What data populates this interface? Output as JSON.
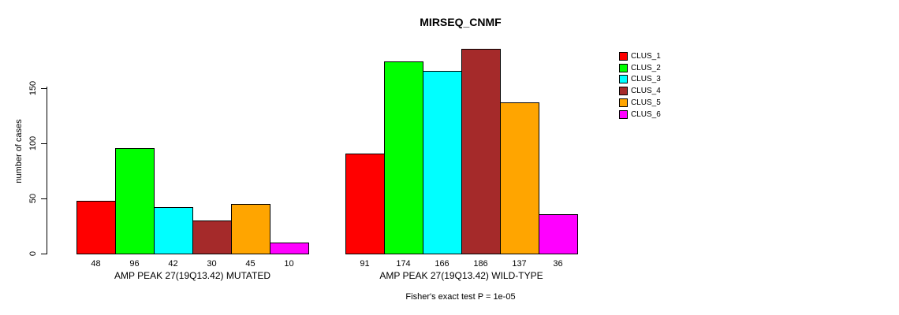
{
  "chart_data": {
    "type": "bar",
    "title": "MIRSEQ_CNMF",
    "ylabel": "number of cases",
    "xlabel": "",
    "yticks": [
      0,
      50,
      100,
      150
    ],
    "ylim": [
      0,
      190
    ],
    "grid": false,
    "legend_position": "right",
    "clusters": [
      {
        "name": "CLUS_1",
        "color": "#ff0000"
      },
      {
        "name": "CLUS_2",
        "color": "#00ff00"
      },
      {
        "name": "CLUS_3",
        "color": "#00ffff"
      },
      {
        "name": "CLUS_4",
        "color": "#a52a2a"
      },
      {
        "name": "CLUS_5",
        "color": "#ffa500"
      },
      {
        "name": "CLUS_6",
        "color": "#ff00ff"
      }
    ],
    "groups": [
      {
        "label": "AMP PEAK 27(19Q13.42) MUTATED",
        "values": [
          48,
          96,
          42,
          30,
          45,
          10
        ]
      },
      {
        "label": "AMP PEAK 27(19Q13.42) WILD-TYPE",
        "values": [
          91,
          174,
          166,
          186,
          137,
          36
        ]
      }
    ],
    "annotation": "Fisher's exact test P = 1e-05"
  }
}
